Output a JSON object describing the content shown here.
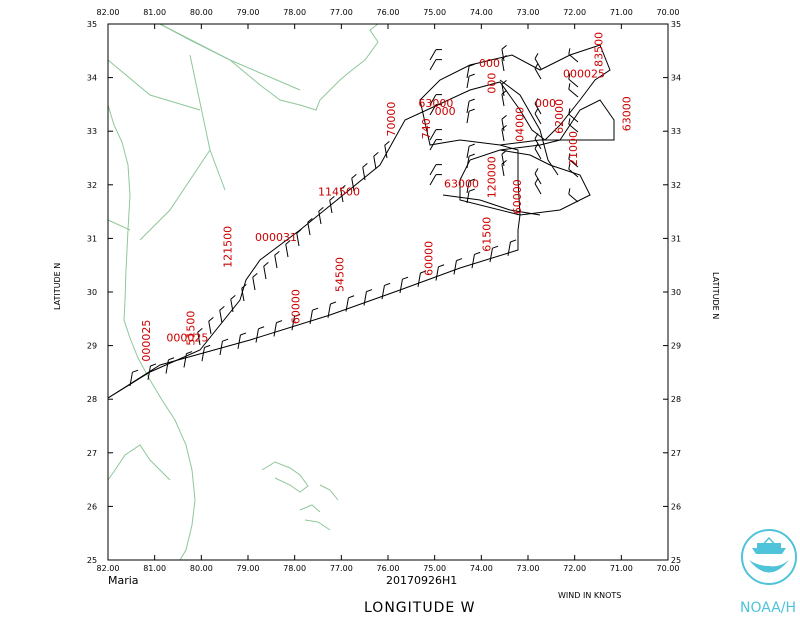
{
  "map": {
    "storm": "Maria",
    "flight_id": "20170926H1",
    "x_axis_label": "LONGITUDE   W",
    "y_axis_label": "LATITUDE   N",
    "wind_units": "WIND IN KNOTS",
    "agency": "NOAA/H",
    "lon_ticks": [
      "82.00",
      "81.00",
      "80.00",
      "79.00",
      "78.00",
      "77.00",
      "76.00",
      "75.00",
      "74.00",
      "73.00",
      "72.00",
      "71.00",
      "70.00"
    ],
    "lat_ticks": [
      "35",
      "34",
      "33",
      "32",
      "31",
      "30",
      "29",
      "28",
      "27",
      "26",
      "25"
    ],
    "altitude_labels": [
      {
        "text": "000025",
        "lon": 81.1,
        "lat": 28.7,
        "rot": -90
      },
      {
        "text": "000025",
        "lon": 80.75,
        "lat": 29.08,
        "rot": 0
      },
      {
        "text": "51500",
        "lon": 80.15,
        "lat": 29.0,
        "rot": -90
      },
      {
        "text": "121500",
        "lon": 79.35,
        "lat": 30.45,
        "rot": -90
      },
      {
        "text": "000031",
        "lon": 78.85,
        "lat": 30.95,
        "rot": 0
      },
      {
        "text": "114500",
        "lon": 77.5,
        "lat": 31.8,
        "rot": 0
      },
      {
        "text": "60000",
        "lon": 77.9,
        "lat": 29.4,
        "rot": -90
      },
      {
        "text": "54500",
        "lon": 76.95,
        "lat": 30.0,
        "rot": -90
      },
      {
        "text": "60000",
        "lon": 75.05,
        "lat": 30.3,
        "rot": -90
      },
      {
        "text": "61500",
        "lon": 73.8,
        "lat": 30.75,
        "rot": -90
      },
      {
        "text": "70000",
        "lon": 75.85,
        "lat": 32.9,
        "rot": -90
      },
      {
        "text": "63000",
        "lon": 75.35,
        "lat": 33.45,
        "rot": 0
      },
      {
        "text": "740",
        "lon": 75.1,
        "lat": 32.85,
        "rot": -90
      },
      {
        "text": "000",
        "lon": 75.0,
        "lat": 33.3,
        "rot": 0
      },
      {
        "text": "63000",
        "lon": 74.8,
        "lat": 31.95,
        "rot": 0
      },
      {
        "text": "120000",
        "lon": 73.7,
        "lat": 31.75,
        "rot": -90
      },
      {
        "text": "000",
        "lon": 74.05,
        "lat": 34.2,
        "rot": 0
      },
      {
        "text": "000",
        "lon": 73.7,
        "lat": 33.7,
        "rot": -90
      },
      {
        "text": "04000",
        "lon": 73.1,
        "lat": 32.8,
        "rot": -90
      },
      {
        "text": "60000",
        "lon": 73.15,
        "lat": 31.45,
        "rot": -90
      },
      {
        "text": "000",
        "lon": 72.85,
        "lat": 33.45,
        "rot": 0
      },
      {
        "text": "000025",
        "lon": 72.25,
        "lat": 34.0,
        "rot": 0
      },
      {
        "text": "83500",
        "lon": 71.4,
        "lat": 34.2,
        "rot": -90
      },
      {
        "text": "62000",
        "lon": 72.25,
        "lat": 32.95,
        "rot": -90
      },
      {
        "text": "21000",
        "lon": 71.95,
        "lat": 32.35,
        "rot": -90
      },
      {
        "text": "63000",
        "lon": 70.8,
        "lat": 33.0,
        "rot": -90
      }
    ]
  }
}
